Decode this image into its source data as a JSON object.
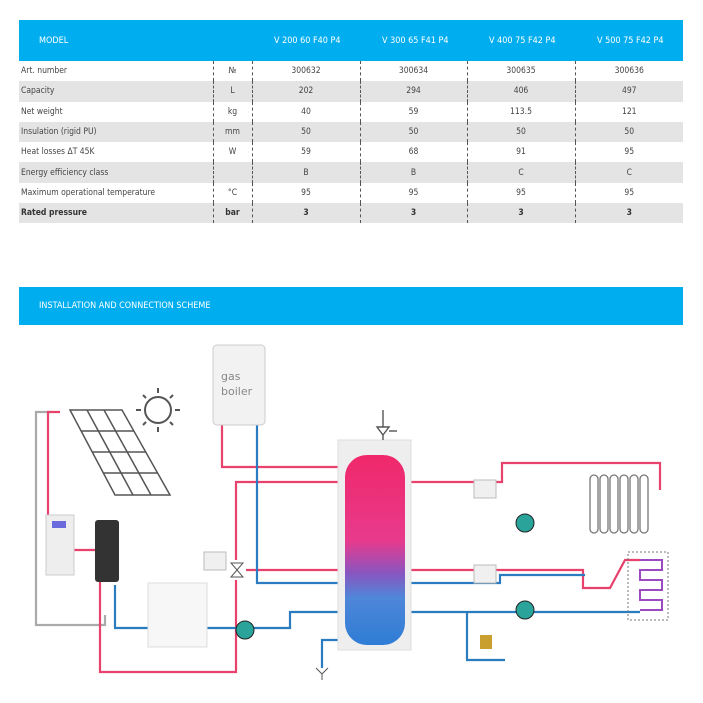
{
  "spec_table": {
    "header": {
      "model_label": "MODEL",
      "models": [
        "V 200 60 F40 P4",
        "V 300 65 F41 P4",
        "V 400 75 F42 P4",
        "V 500 75 F42 P4"
      ]
    },
    "rows": [
      {
        "label": "Art. number",
        "unit": "№",
        "values": [
          "300632",
          "300634",
          "300635",
          "300636"
        ]
      },
      {
        "label": "Capacity",
        "unit": "L",
        "values": [
          "202",
          "294",
          "406",
          "497"
        ]
      },
      {
        "label": "Net weight",
        "unit": "kg",
        "values": [
          "40",
          "59",
          "113.5",
          "121"
        ]
      },
      {
        "label": "Insulation (rigid PU)",
        "unit": "mm",
        "values": [
          "50",
          "50",
          "50",
          "50"
        ]
      },
      {
        "label": "Heat losses ΔT 45K",
        "unit": "W",
        "values": [
          "59",
          "68",
          "91",
          "95"
        ]
      },
      {
        "label": "Energy efficiency class",
        "unit": "",
        "values": [
          "B",
          "B",
          "C",
          "C"
        ]
      },
      {
        "label": "Maximum operational temperature",
        "unit": "°C",
        "values": [
          "95",
          "95",
          "95",
          "95"
        ]
      },
      {
        "label": "Rated pressure",
        "unit": "bar",
        "values": [
          "3",
          "3",
          "3",
          "3"
        ]
      }
    ]
  },
  "scheme": {
    "title": "INSTALLATION AND CONNECTION SCHEME",
    "boiler_label_line1": "gas",
    "boiler_label_line2": "boiler"
  },
  "colors": {
    "accent": "#00aeef",
    "hot_pipe": "#e8416b",
    "cold_pipe": "#2b7bc0"
  }
}
